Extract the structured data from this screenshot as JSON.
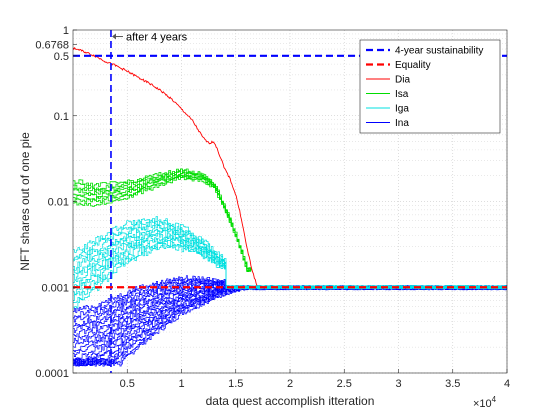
{
  "chart_data": {
    "type": "line",
    "xlabel": "data quest accomplish itteration",
    "ylabel": "NFT shares out of one pie",
    "x_multiplier_label": "×10",
    "x_multiplier_exp": "4",
    "xlim": [
      0,
      40000
    ],
    "ylim": [
      0.0001,
      1
    ],
    "yscale": "log",
    "grid": true,
    "legend_position": "top-right",
    "x_ticks": [
      {
        "value": 5000,
        "label": "0.5"
      },
      {
        "value": 10000,
        "label": "1"
      },
      {
        "value": 15000,
        "label": "1.5"
      },
      {
        "value": 20000,
        "label": "2"
      },
      {
        "value": 25000,
        "label": "2.5"
      },
      {
        "value": 30000,
        "label": "3"
      },
      {
        "value": 35000,
        "label": "3.5"
      },
      {
        "value": 40000,
        "label": "4"
      }
    ],
    "y_ticks": [
      {
        "value": 0.0001,
        "label": "0.0001"
      },
      {
        "value": 0.001,
        "label": "0.001"
      },
      {
        "value": 0.01,
        "label": "0.01"
      },
      {
        "value": 0.1,
        "label": "0.1"
      },
      {
        "value": 0.5,
        "label": "0.5"
      },
      {
        "value": 0.6768,
        "label": "0.6768"
      },
      {
        "value": 1,
        "label": "1"
      }
    ],
    "reference_lines": [
      {
        "name": "4-year sustainability",
        "orientation": "both",
        "x": 3500,
        "y": 0.5,
        "color": "#0000ff",
        "style": "dashed"
      },
      {
        "name": "Equality",
        "orientation": "horizontal",
        "y": 0.001,
        "color": "#ff0000",
        "style": "dashed"
      }
    ],
    "annotation": {
      "text": "after 4 years",
      "x": 3500,
      "y": 0.6768
    },
    "series": [
      {
        "name": "Dia",
        "color": "#ff0000",
        "x": [
          0,
          1000,
          2000,
          3000,
          4000,
          5000,
          6000,
          7000,
          8000,
          9000,
          10000,
          11000,
          12000,
          12500,
          13000,
          13500,
          14000,
          14500,
          15000,
          15500,
          16000,
          16500,
          17000
        ],
        "y": [
          0.62,
          0.56,
          0.5,
          0.43,
          0.38,
          0.33,
          0.28,
          0.24,
          0.2,
          0.16,
          0.12,
          0.088,
          0.055,
          0.048,
          0.05,
          0.035,
          0.024,
          0.018,
          0.012,
          0.0065,
          0.003,
          0.0016,
          0.001
        ]
      },
      {
        "name": "Isa",
        "color": "#00dd00",
        "x": [
          0,
          2000,
          4000,
          6000,
          8000,
          10000,
          12000,
          13000,
          14000,
          15000,
          16000
        ],
        "y": [
          0.013,
          0.012,
          0.013,
          0.015,
          0.018,
          0.021,
          0.019,
          0.015,
          0.008,
          0.004,
          0.0016
        ]
      },
      {
        "name": "Iga",
        "color": "#00e0e0",
        "x": [
          0,
          2000,
          4000,
          6000,
          8000,
          10000,
          12000,
          14000,
          16000
        ],
        "y": [
          0.0012,
          0.0018,
          0.0028,
          0.0038,
          0.0042,
          0.0038,
          0.0028,
          0.0018,
          0.0012
        ]
      },
      {
        "name": "Ina",
        "color": "#0000ff",
        "x": [
          0,
          2000,
          4000,
          6000,
          8000,
          10000,
          12000,
          14000,
          16000,
          20000,
          25000,
          30000,
          35000,
          40000
        ],
        "y": [
          0.00015,
          0.0002,
          0.0003,
          0.00045,
          0.0006,
          0.0008,
          0.0009,
          0.001,
          0.001,
          0.001,
          0.001,
          0.001,
          0.001,
          0.001
        ]
      }
    ]
  }
}
